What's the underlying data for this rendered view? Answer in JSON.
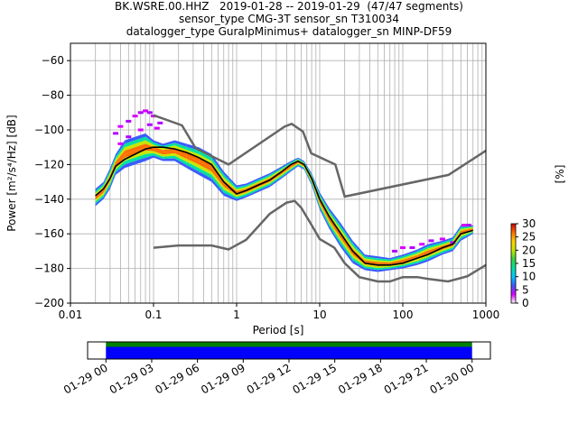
{
  "title_lines": [
    "BK.WSRE.00.HHZ   2019-01-28 -- 2019-01-29  (47/47 segments)",
    "sensor_type CMG-3T sensor_sn T310034",
    "datalogger_type GuralpMinimus+ datalogger_sn MINP-DF59"
  ],
  "chart_data": {
    "type": "heatmap",
    "xlabel": "Period [s]",
    "ylabel": "Power [m²/s⁴/Hz] [dB]",
    "xscale": "log",
    "xlim": [
      0.01,
      1000
    ],
    "ylim": [
      -200,
      -50
    ],
    "xtick_labels": [
      "0.01",
      "0.1",
      "1",
      "10",
      "100",
      "1000"
    ],
    "yticks": [
      -60,
      -80,
      -100,
      -120,
      -140,
      -160,
      -180,
      -200
    ],
    "grid": true,
    "colorbar": {
      "label": "[%]",
      "range": [
        0,
        30
      ],
      "ticks": [
        0,
        5,
        10,
        15,
        20,
        25,
        30
      ],
      "colors": [
        "#ffffff",
        "#d800ff",
        "#3b5bff",
        "#00c8ff",
        "#00e0a0",
        "#3cd23c",
        "#c8e600",
        "#ffd200",
        "#ff6e00",
        "#d20000"
      ]
    },
    "noise_models": [
      {
        "name": "NHNM",
        "color": "#666666",
        "x": [
          0.1,
          0.22,
          0.32,
          0.8,
          3.8,
          4.6,
          6.3,
          7.9,
          15.4,
          20,
          354.8,
          1000
        ],
        "y": [
          -91.5,
          -97.4,
          -110.5,
          -120,
          -98,
          -96.5,
          -101,
          -113.5,
          -120,
          -138.5,
          -126,
          -112
        ]
      },
      {
        "name": "NLNM",
        "color": "#666666",
        "x": [
          0.1,
          0.2,
          0.5,
          0.8,
          1.3,
          2.5,
          4,
          5,
          6,
          8,
          10,
          15,
          20,
          30,
          50,
          70,
          100,
          150,
          200,
          350,
          600,
          1000
        ],
        "y": [
          -168,
          -166.7,
          -166.7,
          -169,
          -163.5,
          -148.5,
          -142,
          -141,
          -145,
          -155,
          -163,
          -168,
          -177,
          -185,
          -187.5,
          -187.5,
          -185,
          -185,
          -186,
          -187.5,
          -184.5,
          -178
        ]
      }
    ],
    "mode_curve": {
      "color": "#000000",
      "x": [
        0.02,
        0.025,
        0.03,
        0.035,
        0.045,
        0.06,
        0.08,
        0.1,
        0.13,
        0.18,
        0.25,
        0.35,
        0.5,
        0.7,
        1.0,
        1.3,
        1.8,
        2.5,
        3.5,
        4.5,
        5.5,
        6.5,
        8,
        10,
        13,
        18,
        25,
        35,
        50,
        70,
        100,
        150,
        200,
        300,
        400,
        500,
        700
      ],
      "y": [
        -138,
        -134,
        -128,
        -121,
        -117,
        -114,
        -111,
        -110,
        -110,
        -111,
        -113,
        -116,
        -120,
        -130,
        -137,
        -135,
        -132,
        -129,
        -124,
        -120,
        -118,
        -120,
        -128,
        -140,
        -150,
        -160,
        -170,
        -177,
        -178,
        -178,
        -177,
        -174,
        -172,
        -168,
        -166,
        -160,
        -158
      ]
    },
    "ppsd_band": {
      "x": [
        0.02,
        0.025,
        0.03,
        0.035,
        0.045,
        0.06,
        0.08,
        0.1,
        0.13,
        0.18,
        0.25,
        0.35,
        0.5,
        0.7,
        1.0,
        1.3,
        1.8,
        2.5,
        3.5,
        4.5,
        5.5,
        6.5,
        8,
        10,
        13,
        18,
        25,
        35,
        50,
        70,
        100,
        150,
        200,
        300,
        400,
        500,
        700
      ],
      "upper": [
        -134,
        -130,
        -122,
        -114,
        -106,
        -104,
        -102,
        -106,
        -108,
        -106,
        -108,
        -110,
        -114,
        -124,
        -132,
        -131,
        -128,
        -125,
        -121,
        -118,
        -116,
        -118,
        -125,
        -136,
        -145,
        -154,
        -164,
        -172,
        -173,
        -174,
        -172,
        -169,
        -166,
        -164,
        -162,
        -155,
        -155
      ],
      "lower": [
        -144,
        -140,
        -134,
        -126,
        -122,
        -120,
        -118,
        -116,
        -118,
        -118,
        -122,
        -126,
        -130,
        -138,
        -141,
        -139,
        -136,
        -133,
        -128,
        -124,
        -121,
        -123,
        -132,
        -146,
        -157,
        -168,
        -177,
        -181,
        -182,
        -181,
        -180,
        -178,
        -176,
        -172,
        -170,
        -164,
        -160
      ]
    },
    "outliers": {
      "x": [
        0.035,
        0.04,
        0.05,
        0.06,
        0.07,
        0.08,
        0.09,
        0.1,
        0.12,
        0.04,
        0.05,
        0.07,
        0.09,
        0.11,
        80,
        100,
        130,
        170,
        220,
        300,
        400,
        550,
        620
      ],
      "y": [
        -102,
        -98,
        -95,
        -92,
        -90,
        -89,
        -90,
        -92,
        -96,
        -108,
        -104,
        -100,
        -97,
        -99,
        -170,
        -168,
        -168,
        -166,
        -164,
        -163,
        -165,
        -155,
        -155
      ]
    },
    "time_axis": {
      "labels": [
        "01-29 00",
        "01-29 03",
        "01-29 06",
        "01-29 09",
        "01-29 12",
        "01-29 15",
        "01-29 18",
        "01-29 21",
        "01-30 00"
      ],
      "start_hours": 0,
      "end_hours": 24,
      "axis_min_hours": -1.2,
      "axis_max_hours": 1.2,
      "bar_colors": [
        "#008000",
        "#0000ff"
      ]
    }
  }
}
